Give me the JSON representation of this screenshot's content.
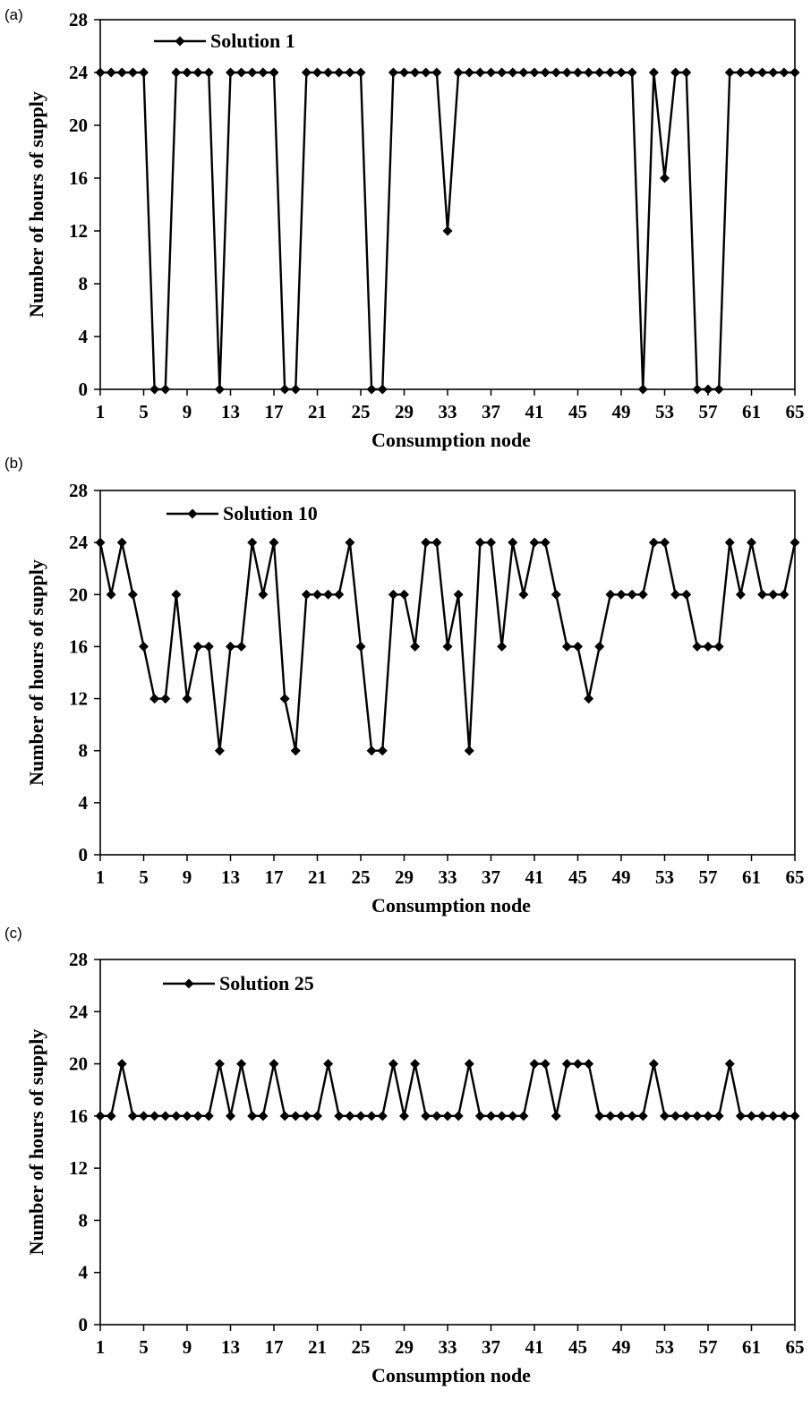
{
  "chart_data": [
    {
      "type": "line",
      "panel_label": "(a)",
      "legend_position": "top-left",
      "xlabel": "Consumption node",
      "ylabel": "Number of hours of supply",
      "ylim": [
        0,
        28
      ],
      "yticks": [
        "0",
        "4",
        "8",
        "12",
        "16",
        "20",
        "24",
        "28"
      ],
      "xlim": [
        1,
        65
      ],
      "xticks": [
        "1",
        "5",
        "9",
        "13",
        "17",
        "21",
        "25",
        "29",
        "33",
        "37",
        "41",
        "45",
        "49",
        "53",
        "57",
        "61",
        "65"
      ],
      "grid": false,
      "marker": "diamond",
      "x": [
        1,
        2,
        3,
        4,
        5,
        6,
        7,
        8,
        9,
        10,
        11,
        12,
        13,
        14,
        15,
        16,
        17,
        18,
        19,
        20,
        21,
        22,
        23,
        24,
        25,
        26,
        27,
        28,
        29,
        30,
        31,
        32,
        33,
        34,
        35,
        36,
        37,
        38,
        39,
        40,
        41,
        42,
        43,
        44,
        45,
        46,
        47,
        48,
        49,
        50,
        51,
        52,
        53,
        54,
        55,
        56,
        57,
        58,
        59,
        60,
        61,
        62,
        63,
        64,
        65
      ],
      "series": [
        {
          "name": "Solution 1",
          "values": [
            24,
            24,
            24,
            24,
            24,
            0,
            0,
            24,
            24,
            24,
            24,
            0,
            24,
            24,
            24,
            24,
            24,
            0,
            0,
            24,
            24,
            24,
            24,
            24,
            24,
            0,
            0,
            24,
            24,
            24,
            24,
            24,
            12,
            24,
            24,
            24,
            24,
            24,
            24,
            24,
            24,
            24,
            24,
            24,
            24,
            24,
            24,
            24,
            24,
            24,
            0,
            24,
            16,
            24,
            24,
            0,
            0,
            0,
            24,
            24,
            24,
            24,
            24,
            24,
            24
          ]
        }
      ]
    },
    {
      "type": "line",
      "panel_label": "(b)",
      "legend_position": "top-left",
      "xlabel": "Consumption node",
      "ylabel": "Number of hours of supply",
      "ylim": [
        0,
        28
      ],
      "yticks": [
        "0",
        "4",
        "8",
        "12",
        "16",
        "20",
        "24",
        "28"
      ],
      "xlim": [
        1,
        65
      ],
      "xticks": [
        "1",
        "5",
        "9",
        "13",
        "17",
        "21",
        "25",
        "29",
        "33",
        "37",
        "41",
        "45",
        "49",
        "53",
        "57",
        "61",
        "65"
      ],
      "grid": false,
      "marker": "diamond",
      "x": [
        1,
        2,
        3,
        4,
        5,
        6,
        7,
        8,
        9,
        10,
        11,
        12,
        13,
        14,
        15,
        16,
        17,
        18,
        19,
        20,
        21,
        22,
        23,
        24,
        25,
        26,
        27,
        28,
        29,
        30,
        31,
        32,
        33,
        34,
        35,
        36,
        37,
        38,
        39,
        40,
        41,
        42,
        43,
        44,
        45,
        46,
        47,
        48,
        49,
        50,
        51,
        52,
        53,
        54,
        55,
        56,
        57,
        58,
        59,
        60,
        61,
        62,
        63,
        64,
        65
      ],
      "series": [
        {
          "name": "Solution 10",
          "values": [
            24,
            20,
            24,
            20,
            16,
            12,
            12,
            20,
            12,
            16,
            16,
            8,
            16,
            16,
            24,
            20,
            24,
            12,
            8,
            20,
            20,
            20,
            20,
            24,
            16,
            8,
            8,
            20,
            20,
            16,
            24,
            24,
            16,
            20,
            8,
            24,
            24,
            16,
            24,
            20,
            24,
            24,
            20,
            16,
            16,
            12,
            16,
            20,
            20,
            20,
            20,
            24,
            24,
            20,
            20,
            16,
            16,
            16,
            24,
            20,
            24,
            20,
            20,
            20,
            24
          ]
        }
      ]
    },
    {
      "type": "line",
      "panel_label": "(c)",
      "legend_position": "top-left",
      "xlabel": "Consumption node",
      "ylabel": "Number of hours of supply",
      "ylim": [
        0,
        28
      ],
      "yticks": [
        "0",
        "4",
        "8",
        "12",
        "16",
        "20",
        "24",
        "28"
      ],
      "xlim": [
        1,
        65
      ],
      "xticks": [
        "1",
        "5",
        "9",
        "13",
        "17",
        "21",
        "25",
        "29",
        "33",
        "37",
        "41",
        "45",
        "49",
        "53",
        "57",
        "61",
        "65"
      ],
      "grid": false,
      "marker": "diamond",
      "x": [
        1,
        2,
        3,
        4,
        5,
        6,
        7,
        8,
        9,
        10,
        11,
        12,
        13,
        14,
        15,
        16,
        17,
        18,
        19,
        20,
        21,
        22,
        23,
        24,
        25,
        26,
        27,
        28,
        29,
        30,
        31,
        32,
        33,
        34,
        35,
        36,
        37,
        38,
        39,
        40,
        41,
        42,
        43,
        44,
        45,
        46,
        47,
        48,
        49,
        50,
        51,
        52,
        53,
        54,
        55,
        56,
        57,
        58,
        59,
        60,
        61,
        62,
        63,
        64,
        65
      ],
      "series": [
        {
          "name": "Solution 25",
          "values": [
            16,
            16,
            20,
            16,
            16,
            16,
            16,
            16,
            16,
            16,
            16,
            20,
            16,
            20,
            16,
            16,
            20,
            16,
            16,
            16,
            16,
            20,
            16,
            16,
            16,
            16,
            16,
            20,
            16,
            20,
            16,
            16,
            16,
            16,
            20,
            16,
            16,
            16,
            16,
            16,
            20,
            20,
            16,
            20,
            20,
            20,
            16,
            16,
            16,
            16,
            16,
            20,
            16,
            16,
            16,
            16,
            16,
            16,
            20,
            16,
            16,
            16,
            16,
            16,
            16
          ]
        }
      ]
    }
  ]
}
